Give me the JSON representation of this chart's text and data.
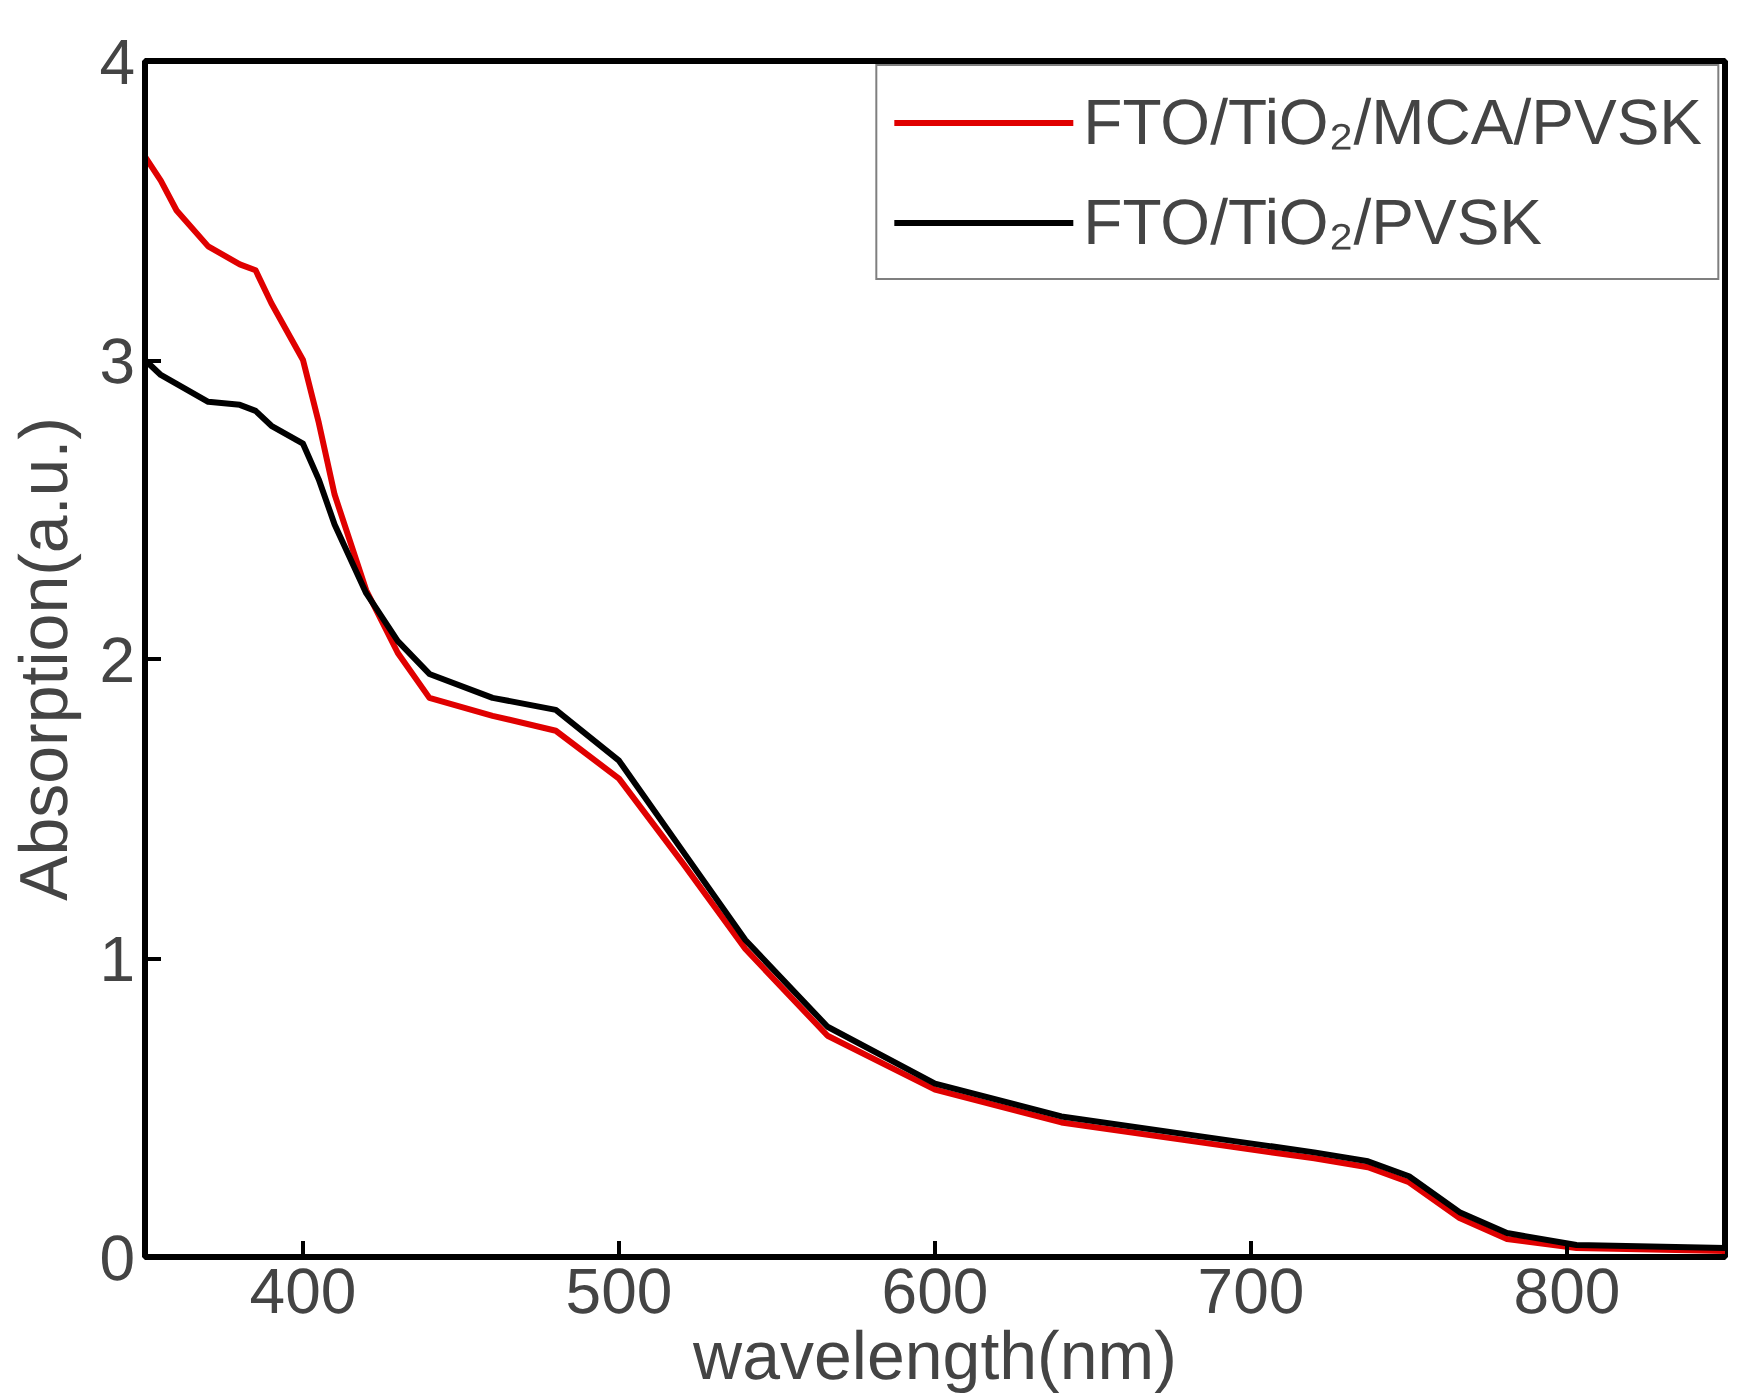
{
  "chart_data": {
    "type": "line",
    "xlabel": "wavelength(nm)",
    "ylabel": "Absorption(a.u.)",
    "xlim": [
      350,
      850
    ],
    "xticks": [
      400,
      500,
      600,
      700,
      800
    ],
    "ylim": [
      0,
      4
    ],
    "yticks": [
      0,
      1,
      2,
      3,
      4
    ],
    "grid": false,
    "legend": "top right",
    "line_style": "solid",
    "marker": "none",
    "x": [
      350,
      355,
      360,
      370,
      380,
      385,
      390,
      400,
      405,
      410,
      420,
      430,
      440,
      460,
      480,
      500,
      520,
      540,
      566,
      600,
      640,
      693,
      720,
      737,
      750,
      766,
      781,
      803,
      850
    ],
    "series": [
      {
        "name": "FTO/TiO₂/MCA/PVSK",
        "color": "#e00000",
        "values": [
          3.68,
          3.6,
          3.5,
          3.38,
          3.32,
          3.3,
          3.19,
          3.0,
          2.79,
          2.55,
          2.23,
          2.02,
          1.87,
          1.81,
          1.76,
          1.6,
          1.32,
          1.03,
          0.74,
          0.56,
          0.45,
          0.37,
          0.33,
          0.3,
          0.25,
          0.13,
          0.06,
          0.03,
          0.02
        ]
      },
      {
        "name": "FTO/TiO₂/PVSK",
        "color": "#000000",
        "values": [
          3.0,
          2.95,
          2.92,
          2.86,
          2.85,
          2.83,
          2.78,
          2.72,
          2.6,
          2.45,
          2.22,
          2.06,
          1.95,
          1.87,
          1.83,
          1.66,
          1.36,
          1.06,
          0.77,
          0.58,
          0.47,
          0.39,
          0.35,
          0.32,
          0.27,
          0.15,
          0.08,
          0.04,
          0.03
        ]
      }
    ]
  }
}
